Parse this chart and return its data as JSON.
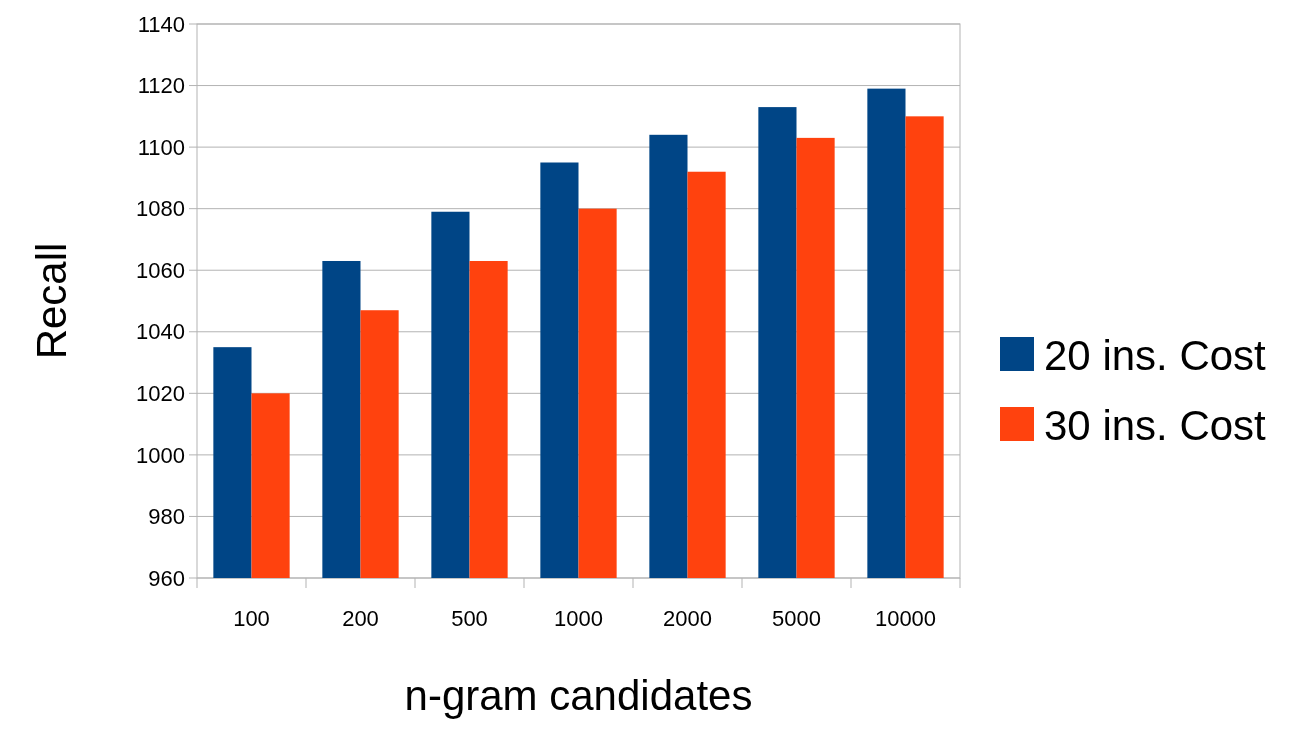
{
  "chart_data": {
    "type": "bar",
    "xlabel": "n-gram candidates",
    "ylabel": "Recall",
    "categories": [
      "100",
      "200",
      "500",
      "1000",
      "2000",
      "5000",
      "10000"
    ],
    "series": [
      {
        "name": "20 ins. Cost",
        "color": "#004586",
        "values": [
          1035,
          1063,
          1079,
          1095,
          1104,
          1113,
          1119
        ]
      },
      {
        "name": "30 ins. Cost",
        "color": "#ff420e",
        "values": [
          1020,
          1047,
          1063,
          1080,
          1092,
          1103,
          1110
        ]
      }
    ],
    "ylim": [
      960,
      1140
    ],
    "yticks": [
      960,
      980,
      1000,
      1020,
      1040,
      1060,
      1080,
      1100,
      1120,
      1140
    ],
    "grid": "y",
    "legend": "right"
  }
}
